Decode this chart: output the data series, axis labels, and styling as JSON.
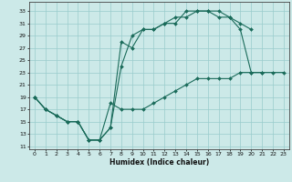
{
  "xlabel": "Humidex (Indice chaleur)",
  "bg_color": "#cce9e8",
  "grid_color": "#99cccc",
  "line_color": "#1a6b5a",
  "xlim": [
    -0.5,
    23.5
  ],
  "ylim": [
    10.5,
    34.5
  ],
  "yticks": [
    11,
    13,
    15,
    17,
    19,
    21,
    23,
    25,
    27,
    29,
    31,
    33
  ],
  "xticks": [
    0,
    1,
    2,
    3,
    4,
    5,
    6,
    7,
    8,
    9,
    10,
    11,
    12,
    13,
    14,
    15,
    16,
    17,
    18,
    19,
    20,
    21,
    22,
    23
  ],
  "line1_x": [
    0,
    1,
    2,
    3,
    4,
    5,
    6,
    7,
    8,
    9,
    10,
    11,
    12,
    13,
    14,
    15,
    16,
    17,
    18,
    19,
    20,
    21
  ],
  "line1_y": [
    19,
    17,
    16,
    15,
    15,
    12,
    12,
    14,
    24,
    29,
    30,
    30,
    31,
    31,
    33,
    33,
    33,
    32,
    32,
    30,
    23,
    23
  ],
  "line2_x": [
    0,
    1,
    2,
    3,
    4,
    5,
    6,
    7,
    8,
    9,
    10,
    11,
    12,
    13,
    14,
    15,
    16,
    17,
    18,
    19,
    20
  ],
  "line2_y": [
    19,
    17,
    16,
    15,
    15,
    12,
    12,
    14,
    28,
    27,
    30,
    30,
    31,
    32,
    32,
    33,
    33,
    33,
    32,
    31,
    30
  ],
  "line3_x": [
    0,
    1,
    2,
    3,
    4,
    5,
    6,
    7,
    8,
    9,
    10,
    11,
    12,
    13,
    14,
    15,
    16,
    17,
    18,
    19,
    20,
    21,
    22,
    23
  ],
  "line3_y": [
    19,
    17,
    16,
    15,
    15,
    12,
    12,
    18,
    17,
    17,
    17,
    18,
    19,
    20,
    21,
    22,
    22,
    22,
    22,
    23,
    23,
    23,
    23,
    23
  ],
  "xlabel_fontsize": 5.5,
  "tick_fontsize": 4.5,
  "linewidth": 0.8,
  "markersize": 2.0
}
